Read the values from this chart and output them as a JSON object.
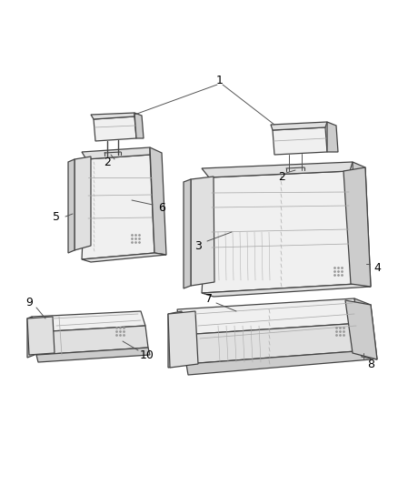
{
  "bg_color": "#ffffff",
  "fig_width": 4.38,
  "fig_height": 5.33,
  "dpi": 100,
  "line_color": "#555555",
  "label_color": "#000000",
  "label_fontsize": 9,
  "edge_color": "#444444",
  "face_light": "#f0f0f0",
  "face_mid": "#e0e0e0",
  "face_dark": "#cccccc",
  "stripe_color": "#aaaaaa",
  "dot_color": "#999999"
}
